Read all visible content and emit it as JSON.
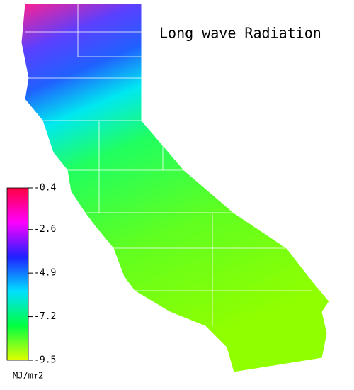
{
  "title": "Long wave Radiation",
  "colorbar": {
    "range": [
      -9.5,
      -0.4
    ],
    "ticks": [
      -0.4,
      -2.6,
      -4.9,
      -7.2,
      -9.5
    ],
    "unit": "MJ/m↑2",
    "colors": [
      "#ff0040",
      "#ff00ff",
      "#2020ff",
      "#00e0ff",
      "#00ff40",
      "#e0ff00"
    ]
  }
}
